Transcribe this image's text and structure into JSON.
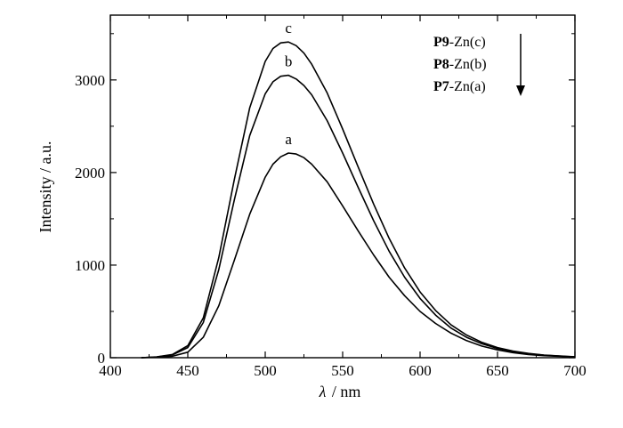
{
  "chart_data": {
    "type": "line",
    "xlabel_symbol": "λ",
    "xlabel_unit": "/ nm",
    "ylabel": "Intensity / a.u.",
    "xlim": [
      400,
      700
    ],
    "ylim": [
      0,
      3700
    ],
    "xticks": [
      400,
      450,
      500,
      550,
      600,
      650,
      700
    ],
    "yticks": [
      0,
      1000,
      2000,
      3000
    ],
    "series": [
      {
        "name": "a",
        "x": [
          420,
          430,
          440,
          450,
          460,
          470,
          480,
          490,
          500,
          505,
          510,
          515,
          520,
          525,
          530,
          540,
          550,
          560,
          570,
          580,
          590,
          600,
          610,
          620,
          630,
          640,
          650,
          660,
          670,
          680,
          690,
          700
        ],
        "y": [
          0,
          5,
          15,
          60,
          220,
          560,
          1050,
          1550,
          1950,
          2090,
          2170,
          2210,
          2200,
          2160,
          2090,
          1900,
          1640,
          1370,
          1110,
          870,
          670,
          500,
          370,
          265,
          185,
          125,
          85,
          55,
          35,
          22,
          14,
          8
        ]
      },
      {
        "name": "b",
        "x": [
          420,
          430,
          440,
          450,
          460,
          470,
          480,
          490,
          500,
          505,
          510,
          515,
          520,
          525,
          530,
          540,
          550,
          560,
          570,
          580,
          590,
          600,
          610,
          620,
          630,
          640,
          650,
          660,
          670,
          680,
          690,
          700
        ],
        "y": [
          0,
          8,
          30,
          110,
          380,
          950,
          1700,
          2400,
          2850,
          2980,
          3040,
          3050,
          3010,
          2940,
          2840,
          2560,
          2210,
          1840,
          1480,
          1150,
          870,
          640,
          460,
          320,
          220,
          150,
          100,
          65,
          42,
          27,
          17,
          10
        ]
      },
      {
        "name": "c",
        "x": [
          420,
          430,
          440,
          450,
          460,
          470,
          480,
          490,
          500,
          505,
          510,
          515,
          520,
          525,
          530,
          540,
          550,
          560,
          570,
          580,
          590,
          600,
          610,
          620,
          630,
          640,
          650,
          660,
          670,
          680,
          690,
          700
        ],
        "y": [
          0,
          10,
          35,
          130,
          430,
          1080,
          1920,
          2700,
          3200,
          3340,
          3400,
          3410,
          3370,
          3290,
          3170,
          2860,
          2470,
          2060,
          1660,
          1290,
          970,
          710,
          510,
          355,
          245,
          165,
          110,
          72,
          46,
          29,
          18,
          11
        ]
      }
    ],
    "legend": {
      "placement": "top-right",
      "entries": [
        {
          "bold": "P9",
          "rest": "-Zn(c)"
        },
        {
          "bold": "P8",
          "rest": "-Zn(b)"
        },
        {
          "bold": "P7",
          "rest": "-Zn(a)"
        }
      ],
      "arrow": "down"
    },
    "grid": false
  }
}
